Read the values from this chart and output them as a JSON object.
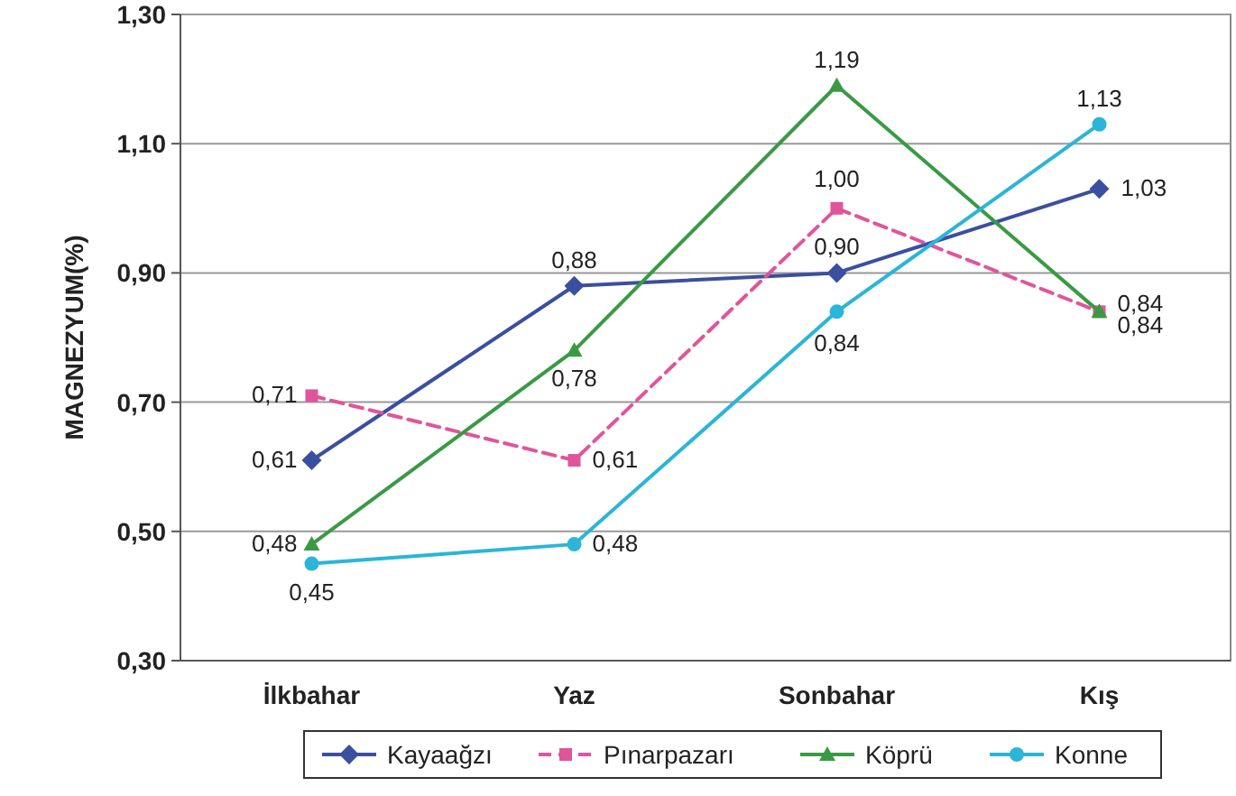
{
  "chart_data": {
    "type": "line",
    "ylabel": "MAGNEZYUM(%)",
    "categories": [
      "İlkbahar",
      "Yaz",
      "Sonbahar",
      "Kış"
    ],
    "series": [
      {
        "name": "Kayaağzı",
        "color": "#3a4fa0",
        "values": [
          0.61,
          0.88,
          0.9,
          1.03
        ],
        "value_labels": [
          "0,61",
          "0,88",
          "0,90",
          "1,03"
        ],
        "marker": "diamond",
        "line_style": "solid"
      },
      {
        "name": "Pınarpazarı",
        "color": "#e0559a",
        "values": [
          0.71,
          0.61,
          1.0,
          0.84
        ],
        "value_labels": [
          "0,71",
          "0,61",
          "1,00",
          "0,84"
        ],
        "marker": "square",
        "line_style": "dashed"
      },
      {
        "name": "Köprü",
        "color": "#3a9a44",
        "values": [
          0.48,
          0.78,
          1.19,
          0.84
        ],
        "value_labels": [
          "0,48",
          "0,78",
          "1,19",
          "0,84"
        ],
        "marker": "triangle",
        "line_style": "solid"
      },
      {
        "name": "Konne",
        "color": "#2bb5d8",
        "values": [
          0.45,
          0.48,
          0.84,
          1.13
        ],
        "value_labels": [
          "0,45",
          "0,48",
          "0,84",
          "1,13"
        ],
        "marker": "circle",
        "line_style": "solid"
      }
    ],
    "ylim": [
      0.3,
      1.3
    ],
    "yticks": [
      {
        "value": 0.3,
        "label": "0,30"
      },
      {
        "value": 0.5,
        "label": "0,50"
      },
      {
        "value": 0.7,
        "label": "0,70"
      },
      {
        "value": 0.9,
        "label": "0,90"
      },
      {
        "value": 1.1,
        "label": "1,10"
      },
      {
        "value": 1.3,
        "label": "1,30"
      }
    ],
    "grid": "y",
    "legend": "bottom"
  }
}
